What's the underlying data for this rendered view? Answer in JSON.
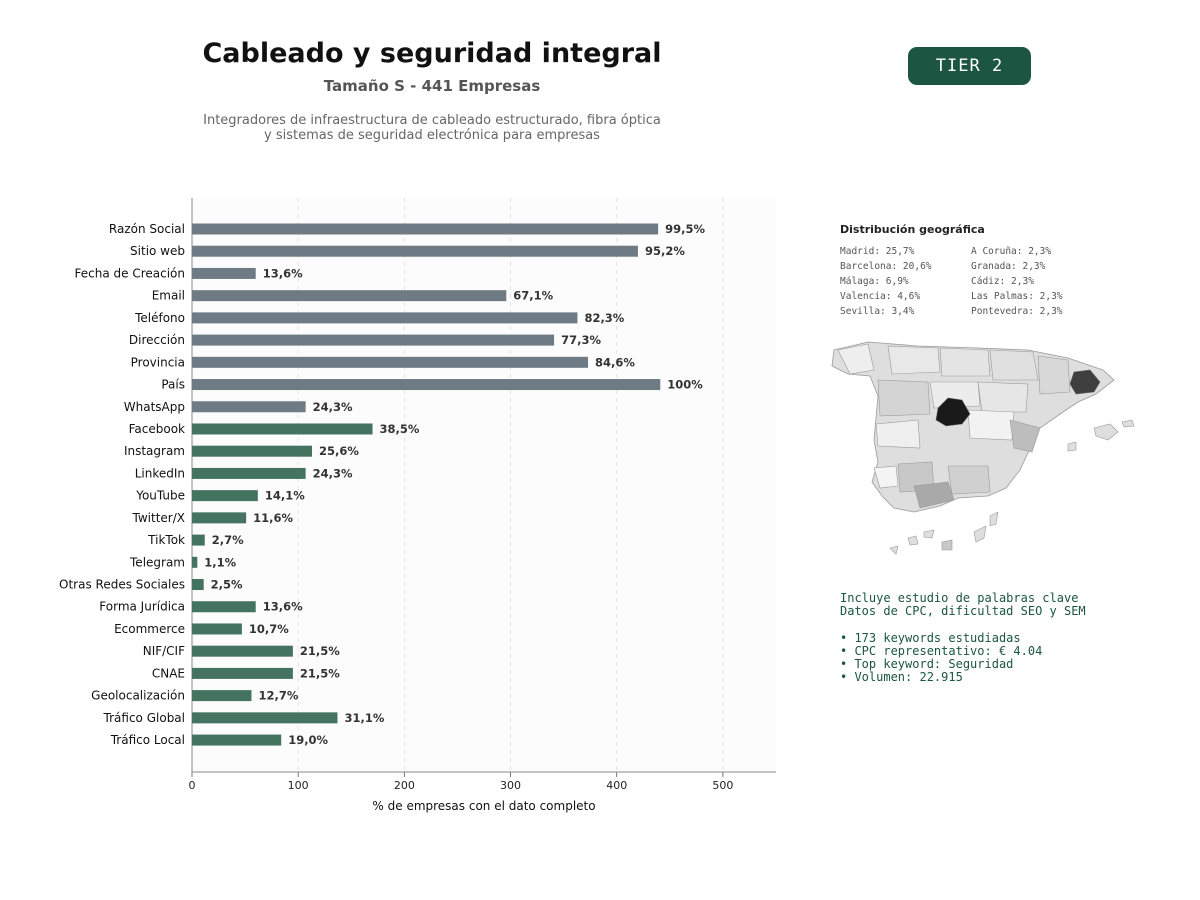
{
  "header": {
    "title": "Cableado y seguridad integral",
    "subtitle": "Tamaño S - 441 Empresas",
    "description_line1": "Integradores de infraestructura de cableado estructurado, fibra óptica",
    "description_line2": "y sistemas de seguridad electrónica para empresas",
    "tier": "TIER 2"
  },
  "chart_data": {
    "type": "bar",
    "orientation": "horizontal",
    "xlabel": "% de empresas con el dato completo",
    "xlim": [
      0,
      550
    ],
    "xticks": [
      0,
      100,
      200,
      300,
      400,
      500
    ],
    "grid": "vertical dashed",
    "total_companies": 441,
    "categories": [
      "Razón Social",
      "Sitio web",
      "Fecha de Creación",
      "Email",
      "Teléfono",
      "Dirección",
      "Provincia",
      "País",
      "WhatsApp",
      "Facebook",
      "Instagram",
      "LinkedIn",
      "YouTube",
      "Twitter/X",
      "TikTok",
      "Telegram",
      "Otras Redes Sociales",
      "Forma Jurídica",
      "Ecommerce",
      "NIF/CIF",
      "CNAE",
      "Geolocalización",
      "Tráfico Global",
      "Tráfico Local"
    ],
    "values": [
      439,
      420,
      60,
      296,
      363,
      341,
      373,
      441,
      107,
      170,
      113,
      107,
      62,
      51,
      12,
      5,
      11,
      60,
      47,
      95,
      95,
      56,
      137,
      84
    ],
    "labels": [
      "99,5%",
      "95,2%",
      "13,6%",
      "67,1%",
      "82,3%",
      "77,3%",
      "84,6%",
      "100%",
      "24,3%",
      "38,5%",
      "25,6%",
      "24,3%",
      "14,1%",
      "11,6%",
      "2,7%",
      "1,1%",
      "2,5%",
      "13,6%",
      "10,7%",
      "21,5%",
      "21,5%",
      "12,7%",
      "31,1%",
      "19,0%"
    ],
    "colors": [
      "#6f7b84",
      "#6f7b84",
      "#6f7b84",
      "#6f7b84",
      "#6f7b84",
      "#6f7b84",
      "#6f7b84",
      "#6f7b84",
      "#6f7b84",
      "#44735f",
      "#44735f",
      "#44735f",
      "#44735f",
      "#44735f",
      "#44735f",
      "#44735f",
      "#44735f",
      "#44735f",
      "#44735f",
      "#44735f",
      "#44735f",
      "#44735f",
      "#44735f",
      "#44735f"
    ]
  },
  "geo": {
    "title": "Distribución geográfica",
    "col1": [
      "Madrid: 25,7%",
      "Barcelona: 20,6%",
      "Málaga: 6,9%",
      "Valencia: 4,6%",
      "Sevilla: 3,4%"
    ],
    "col2": [
      "A Coruña: 2,3%",
      "Granada: 2,3%",
      "Cádiz: 2,3%",
      "Las Palmas: 2,3%",
      "Pontevedra: 2,3%"
    ]
  },
  "keywords": {
    "line1": "Incluye estudio de palabras clave",
    "line2": "Datos de CPC, dificultad SEO y SEM",
    "bullet1": "• 173 keywords estudiadas",
    "bullet2": "• CPC representativo: € 4.04",
    "bullet3": "• Top keyword: Seguridad",
    "bullet4": "• Volumen: 22.915"
  }
}
